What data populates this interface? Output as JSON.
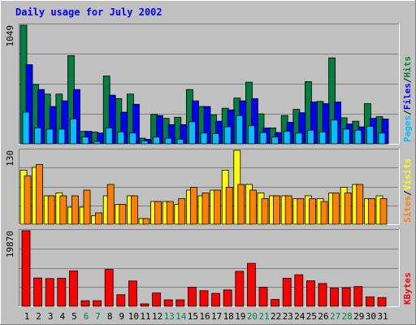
{
  "colors": {
    "background": "#C0C0C0",
    "plot": "#C0C0C0",
    "hits": "#008040",
    "files": "#0000FF",
    "pages": "#00C0FF",
    "visits": "#FFFF00",
    "sites": "#FF8000",
    "kbytes": "#FF0000",
    "title": "#0000FF",
    "weekday": "#000000",
    "weekend": "#00805C"
  },
  "chart_data": [
    {
      "type": "bar",
      "title": "Daily usage for July 2002",
      "side_label": [
        "Pages",
        "Files",
        "Hits"
      ],
      "max_label": "1049",
      "ylim": [
        0,
        1049
      ],
      "days": [
        1,
        2,
        3,
        4,
        5,
        6,
        7,
        8,
        9,
        10,
        11,
        12,
        13,
        14,
        15,
        16,
        17,
        18,
        19,
        20,
        21,
        22,
        23,
        24,
        25,
        26,
        27,
        28,
        29,
        30,
        31
      ],
      "weekend_days": [
        6,
        7,
        13,
        14,
        20,
        21,
        27,
        28
      ],
      "series": [
        {
          "name": "Hits",
          "values": [
            1049,
            525,
            440,
            440,
            780,
            110,
            105,
            600,
            400,
            440,
            50,
            260,
            225,
            235,
            480,
            330,
            255,
            315,
            405,
            545,
            265,
            140,
            250,
            305,
            550,
            375,
            760,
            230,
            200,
            355,
            240
          ]
        },
        {
          "name": "Files",
          "values": [
            700,
            480,
            330,
            380,
            480,
            110,
            95,
            430,
            280,
            350,
            40,
            250,
            170,
            170,
            380,
            330,
            200,
            300,
            380,
            400,
            140,
            100,
            190,
            275,
            370,
            355,
            370,
            175,
            150,
            225,
            220
          ]
        },
        {
          "name": "Pages",
          "values": [
            280,
            140,
            130,
            130,
            220,
            60,
            20,
            140,
            105,
            95,
            25,
            60,
            50,
            40,
            195,
            95,
            90,
            150,
            250,
            160,
            100,
            60,
            110,
            95,
            120,
            105,
            210,
            130,
            120,
            155,
            95
          ]
        }
      ]
    },
    {
      "type": "bar",
      "side_label": [
        "Sites",
        "Visits"
      ],
      "max_label": "130",
      "ylim": [
        0,
        130
      ],
      "series": [
        {
          "name": "Visits",
          "values": [
            95,
            100,
            50,
            55,
            30,
            30,
            15,
            50,
            35,
            50,
            10,
            40,
            40,
            35,
            60,
            50,
            60,
            95,
            130,
            70,
            55,
            50,
            50,
            45,
            50,
            45,
            55,
            65,
            70,
            45,
            50
          ]
        },
        {
          "name": "Sites",
          "values": [
            85,
            105,
            50,
            50,
            50,
            60,
            20,
            70,
            35,
            50,
            10,
            40,
            40,
            45,
            65,
            55,
            60,
            65,
            70,
            60,
            45,
            50,
            50,
            45,
            45,
            40,
            55,
            55,
            70,
            45,
            45
          ]
        }
      ]
    },
    {
      "type": "bar",
      "side_label": [
        "KBytes"
      ],
      "max_label": "19870",
      "ylim": [
        0,
        19870
      ],
      "series": [
        {
          "name": "KBytes",
          "values": [
            19870,
            7450,
            7300,
            7400,
            9330,
            1470,
            1470,
            9700,
            3050,
            6660,
            650,
            3500,
            1700,
            1700,
            5000,
            4100,
            3400,
            4300,
            9200,
            11300,
            5000,
            1800,
            7400,
            8300,
            6700,
            6000,
            4800,
            4900,
            5200,
            2500,
            2300
          ]
        }
      ]
    }
  ]
}
